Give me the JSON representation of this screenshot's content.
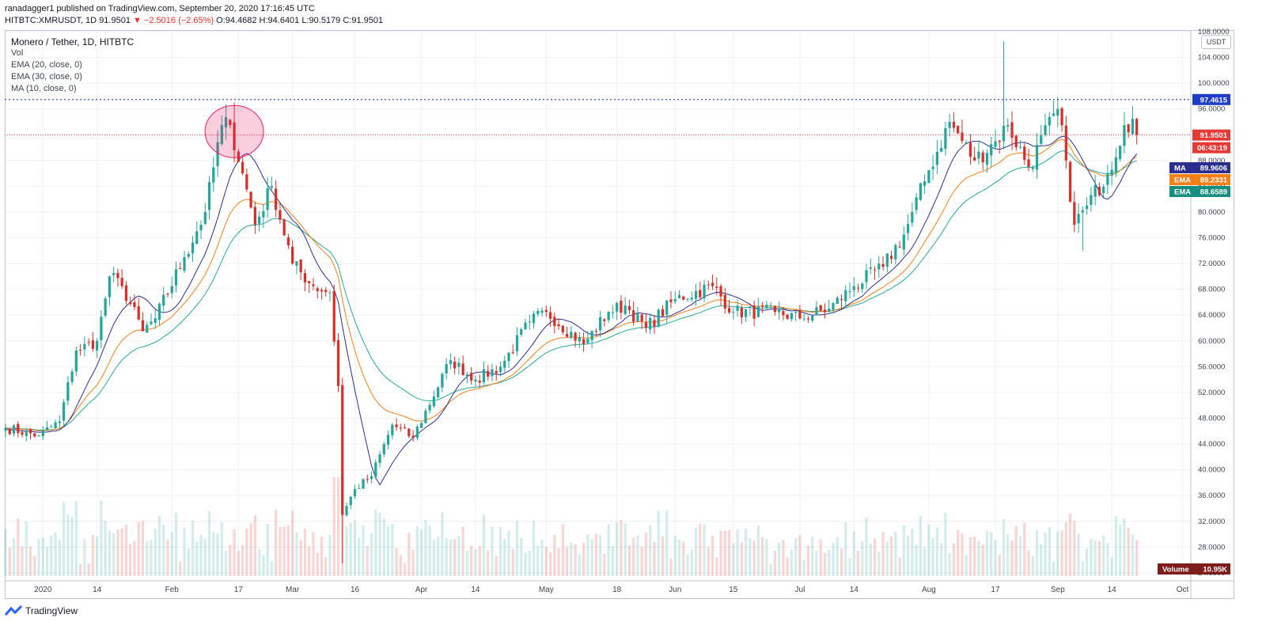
{
  "header": {
    "line1_prefix": "ranadagger1 published on TradingView.com, September 20, 2020 17:16:45 UTC",
    "ticker": "HITBTC:XMRUSDT, 1D",
    "last": "91.9501",
    "change": "▼ −2.5016 (−2.65%)",
    "open": "O:94.4682",
    "high": "H:94.6401",
    "low": "L:90.5179",
    "close": "C:91.9501"
  },
  "legend": {
    "title": "Monero / Tether, 1D, HITBTC",
    "vol": "Vol",
    "ema20": "EMA (20, close, 0)",
    "ema30": "EMA (30, close, 0)",
    "ma10": "MA (10, close, 0)"
  },
  "axis_unit": "USDT",
  "brand": "TradingView",
  "colors": {
    "up": "#26a69a",
    "down": "#d7302a",
    "ma10": "#2a2e8f",
    "ema20": "#f57f17",
    "ema30": "#26a69a",
    "resistance": "#2962ff",
    "last_price": "#e53935",
    "volume_badge": "#7f1d1d"
  },
  "chart_data": {
    "type": "candlestick",
    "title": "Monero / Tether, 1D, HITBTC",
    "ylim": [
      23.5,
      108
    ],
    "y_ticks": [
      "108.0000",
      "104.0000",
      "100.0000",
      "96.0000",
      "92.0000",
      "88.0000",
      "84.0000",
      "80.0000",
      "76.0000",
      "72.0000",
      "68.0000",
      "64.0000",
      "60.0000",
      "56.0000",
      "52.0000",
      "48.0000",
      "44.0000",
      "40.0000",
      "36.0000",
      "32.0000",
      "28.0000",
      "24.0000"
    ],
    "x_ticks": [
      {
        "date": "2020-01-01",
        "label": "2020"
      },
      {
        "date": "2020-01-14",
        "label": "14"
      },
      {
        "date": "2020-02-01",
        "label": "Feb"
      },
      {
        "date": "2020-02-17",
        "label": "17"
      },
      {
        "date": "2020-03-01",
        "label": "Mar"
      },
      {
        "date": "2020-03-16",
        "label": "16"
      },
      {
        "date": "2020-04-01",
        "label": "Apr"
      },
      {
        "date": "2020-04-14",
        "label": "14"
      },
      {
        "date": "2020-05-01",
        "label": "May"
      },
      {
        "date": "2020-05-18",
        "label": "18"
      },
      {
        "date": "2020-06-01",
        "label": "Jun"
      },
      {
        "date": "2020-06-15",
        "label": "15"
      },
      {
        "date": "2020-07-01",
        "label": "Jul"
      },
      {
        "date": "2020-07-14",
        "label": "14"
      },
      {
        "date": "2020-08-01",
        "label": "Aug"
      },
      {
        "date": "2020-08-17",
        "label": "17"
      },
      {
        "date": "2020-09-01",
        "label": "Sep"
      },
      {
        "date": "2020-09-14",
        "label": "14"
      },
      {
        "date": "2020-10-01",
        "label": "Oct"
      }
    ],
    "x_start": "2019-12-23",
    "x_end": "2020-10-03",
    "price_anchors": [
      {
        "date": "2019-12-23",
        "close": 46.5
      },
      {
        "date": "2019-12-31",
        "close": 45.3
      },
      {
        "date": "2020-01-05",
        "close": 47.5
      },
      {
        "date": "2020-01-09",
        "close": 58.5
      },
      {
        "date": "2020-01-14",
        "close": 60.0
      },
      {
        "date": "2020-01-17",
        "close": 70.0
      },
      {
        "date": "2020-01-20",
        "close": 68.5
      },
      {
        "date": "2020-01-25",
        "close": 61.5
      },
      {
        "date": "2020-01-28",
        "close": 63.5
      },
      {
        "date": "2020-02-04",
        "close": 73.0
      },
      {
        "date": "2020-02-09",
        "close": 80.0
      },
      {
        "date": "2020-02-13",
        "close": 93.5
      },
      {
        "date": "2020-02-15",
        "close": 93.5
      },
      {
        "date": "2020-02-18",
        "close": 86.0
      },
      {
        "date": "2020-02-21",
        "close": 78.0
      },
      {
        "date": "2020-02-25",
        "close": 84.0
      },
      {
        "date": "2020-03-01",
        "close": 72.0
      },
      {
        "date": "2020-03-06",
        "close": 68.5
      },
      {
        "date": "2020-03-10",
        "close": 67.5
      },
      {
        "date": "2020-03-12",
        "close": 53.0
      },
      {
        "date": "2020-03-13",
        "close": 33.0
      },
      {
        "date": "2020-03-16",
        "close": 37.0
      },
      {
        "date": "2020-03-20",
        "close": 39.0
      },
      {
        "date": "2020-03-25",
        "close": 47.0
      },
      {
        "date": "2020-03-30",
        "close": 45.0
      },
      {
        "date": "2020-04-08",
        "close": 57.0
      },
      {
        "date": "2020-04-14",
        "close": 54.0
      },
      {
        "date": "2020-04-20",
        "close": 56.0
      },
      {
        "date": "2020-04-27",
        "close": 63.0
      },
      {
        "date": "2020-05-01",
        "close": 64.5
      },
      {
        "date": "2020-05-10",
        "close": 59.5
      },
      {
        "date": "2020-05-16",
        "close": 64.5
      },
      {
        "date": "2020-05-20",
        "close": 65.5
      },
      {
        "date": "2020-05-25",
        "close": 62.0
      },
      {
        "date": "2020-06-01",
        "close": 66.5
      },
      {
        "date": "2020-06-10",
        "close": 68.5
      },
      {
        "date": "2020-06-15",
        "close": 64.5
      },
      {
        "date": "2020-06-25",
        "close": 64.5
      },
      {
        "date": "2020-07-01",
        "close": 63.5
      },
      {
        "date": "2020-07-08",
        "close": 65.0
      },
      {
        "date": "2020-07-14",
        "close": 68.5
      },
      {
        "date": "2020-07-21",
        "close": 71.5
      },
      {
        "date": "2020-07-26",
        "close": 76.5
      },
      {
        "date": "2020-08-01",
        "close": 86.5
      },
      {
        "date": "2020-08-06",
        "close": 94.0
      },
      {
        "date": "2020-08-12",
        "close": 88.0
      },
      {
        "date": "2020-08-17",
        "close": 91.0
      },
      {
        "date": "2020-08-20",
        "close": 93.5
      },
      {
        "date": "2020-08-25",
        "close": 87.0
      },
      {
        "date": "2020-09-01",
        "close": 96.0
      },
      {
        "date": "2020-09-03",
        "close": 88.0
      },
      {
        "date": "2020-09-05",
        "close": 78.0
      },
      {
        "date": "2020-09-08",
        "close": 81.0
      },
      {
        "date": "2020-09-13",
        "close": 86.0
      },
      {
        "date": "2020-09-17",
        "close": 93.5
      },
      {
        "date": "2020-09-19",
        "close": 94.4682
      },
      {
        "date": "2020-09-20",
        "close": 91.9501
      }
    ],
    "last_bar": {
      "date": "2020-09-20",
      "open": 94.4682,
      "high": 94.6401,
      "low": 90.5179,
      "close": 91.9501
    },
    "notable_wicks": [
      {
        "date": "2020-02-16",
        "high": 97.0
      },
      {
        "date": "2020-03-13",
        "low": 25.5
      },
      {
        "date": "2020-08-19",
        "high": 106.5
      },
      {
        "date": "2020-09-07",
        "low": 74.0
      }
    ],
    "series": [
      {
        "name": "MA",
        "value": 89.9606
      },
      {
        "name": "EMA",
        "value": 89.2331
      },
      {
        "name": "EMA",
        "value": 88.6589
      }
    ],
    "resistance_level": {
      "value": 97.4615,
      "label": "97.4615"
    },
    "last_price_label": "91.9501",
    "countdown_label": "06:43:19",
    "volume_label": "Volume",
    "volume_value": "10.95K",
    "annotations": [
      {
        "type": "circle",
        "date": "2020-02-16",
        "price": 92.5,
        "note": "highlighted top"
      }
    ]
  }
}
